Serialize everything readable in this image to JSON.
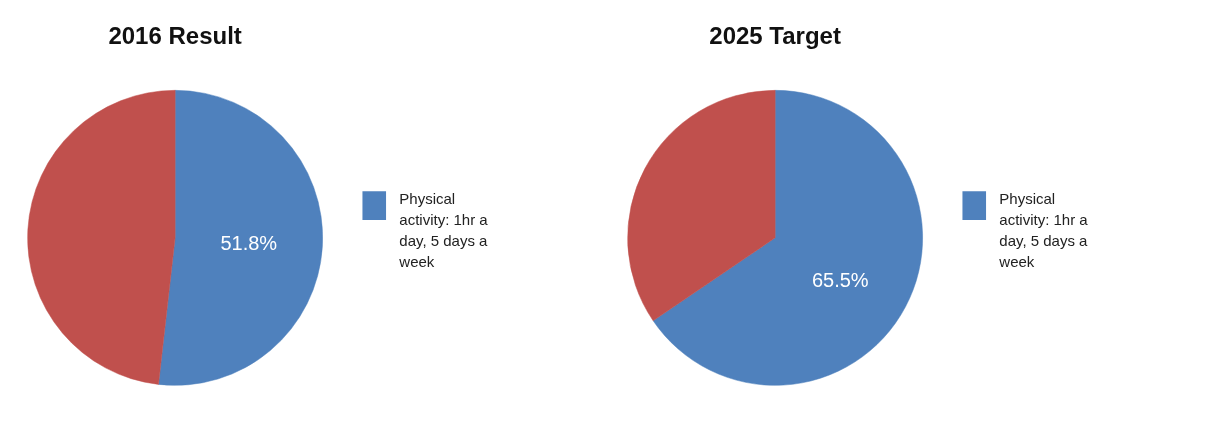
{
  "chart_data": [
    {
      "type": "pie",
      "title": "2016 Result",
      "categories": [
        "Physical activity: 1hr a day, 5 days a week",
        null
      ],
      "values": [
        51.8,
        48.2
      ],
      "colors": [
        "#4f81bd",
        "#c0504d"
      ],
      "value_labels": [
        "51.8%",
        null
      ],
      "legend": "right"
    },
    {
      "type": "pie",
      "title": "2025 Target",
      "categories": [
        "Physical activity: 1hr a day, 5 days a week",
        null
      ],
      "values": [
        65.5,
        34.5
      ],
      "colors": [
        "#4f81bd",
        "#c0504d"
      ],
      "value_labels": [
        "65.5%",
        null
      ],
      "legend": "right"
    }
  ]
}
